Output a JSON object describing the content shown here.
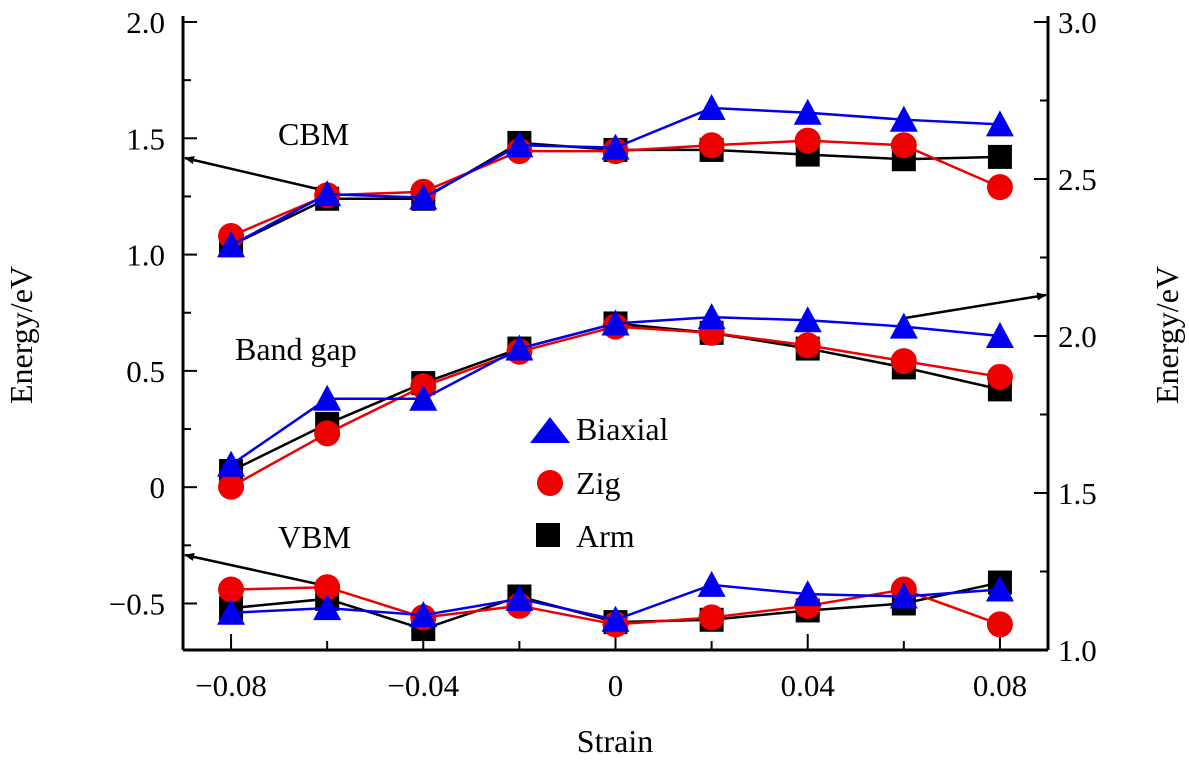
{
  "chart_data": {
    "type": "line",
    "xlabel": "Strain",
    "ylabel_left": "Energy/eV",
    "ylabel_right": "Energy/eV",
    "xlim": [
      -0.09,
      0.09
    ],
    "ylim_left": [
      -0.7,
      2.0
    ],
    "ylim_right": [
      1.0,
      3.0
    ],
    "x_ticks": [
      "−0.08",
      "−0.04",
      "0",
      "0.04",
      "0.08"
    ],
    "x_tick_values": [
      -0.08,
      -0.04,
      0,
      0.04,
      0.08
    ],
    "y_left_ticks": [
      "2.0",
      "1.5",
      "1.0",
      "0.5",
      "0",
      "−0.5"
    ],
    "y_left_tick_values": [
      2.0,
      1.5,
      1.0,
      0.5,
      0,
      -0.5
    ],
    "y_right_ticks": [
      "3.0",
      "2.5",
      "2.0",
      "1.5",
      "1.0"
    ],
    "y_right_tick_values": [
      3.0,
      2.5,
      2.0,
      1.5,
      1.0
    ],
    "grid": false,
    "legend_position": "center",
    "x": [
      -0.08,
      -0.06,
      -0.04,
      -0.02,
      0,
      0.02,
      0.04,
      0.06,
      0.08
    ],
    "groups": [
      {
        "label": "CBM",
        "axis": "left",
        "series": {
          "Arm": [
            1.04,
            1.24,
            1.24,
            1.48,
            1.45,
            1.45,
            1.43,
            1.41,
            1.42
          ],
          "Zig": [
            1.08,
            1.255,
            1.27,
            1.445,
            1.445,
            1.47,
            1.49,
            1.47,
            1.29
          ],
          "Biaxial": [
            1.04,
            1.26,
            1.245,
            1.47,
            1.46,
            1.63,
            1.61,
            1.58,
            1.56
          ]
        }
      },
      {
        "label": "Band gap",
        "axis": "right",
        "series": {
          "Arm": [
            1.57,
            1.72,
            1.85,
            1.96,
            2.04,
            2.01,
            1.96,
            1.9,
            1.83
          ],
          "Zig": [
            1.52,
            1.69,
            1.84,
            1.95,
            2.03,
            2.01,
            1.97,
            1.92,
            1.87
          ],
          "Biaxial": [
            1.59,
            1.8,
            1.8,
            1.96,
            2.04,
            2.06,
            2.05,
            2.03,
            2.0
          ]
        }
      },
      {
        "label": "VBM",
        "axis": "left",
        "series": {
          "Arm": [
            -0.52,
            -0.48,
            -0.61,
            -0.47,
            -0.58,
            -0.57,
            -0.53,
            -0.5,
            -0.41
          ],
          "Zig": [
            -0.44,
            -0.43,
            -0.56,
            -0.51,
            -0.59,
            -0.56,
            -0.51,
            -0.44,
            -0.59
          ],
          "Biaxial": [
            -0.54,
            -0.52,
            -0.55,
            -0.48,
            -0.57,
            -0.42,
            -0.46,
            -0.47,
            -0.44
          ]
        }
      }
    ],
    "legend": [
      {
        "name": "Biaxial",
        "marker": "triangle",
        "color": "#0000ee"
      },
      {
        "name": "Zig",
        "marker": "circle",
        "color": "#ee0000"
      },
      {
        "name": "Arm",
        "marker": "square",
        "color": "#000000"
      }
    ]
  }
}
